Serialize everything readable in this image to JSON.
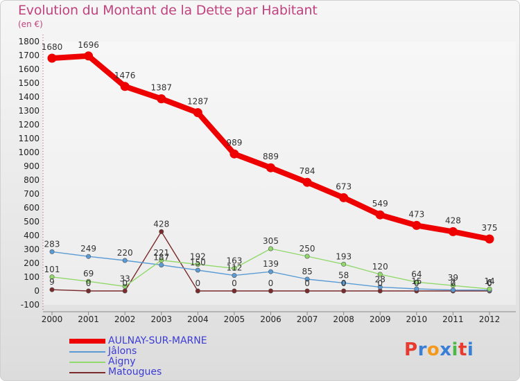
{
  "header": {
    "title": "Evolution du Montant de la Dette par Habitant",
    "subtitle": "(en €)"
  },
  "logo": {
    "text": "Proxiti",
    "colors": [
      "#e63b2e",
      "#3a7fd6",
      "#f39a1c",
      "#3a7fd6",
      "#4cb848",
      "#e63b2e",
      "#3a7fd6"
    ]
  },
  "chart_data": {
    "type": "line",
    "title": "Evolution du Montant de la Dette par Habitant",
    "subtitle": "(en €)",
    "xlabel": "",
    "ylabel": "",
    "x": [
      "2000",
      "2001",
      "2002",
      "2003",
      "2004",
      "2005",
      "2006",
      "2007",
      "2008",
      "2009",
      "2010",
      "2011",
      "2012"
    ],
    "ylim": [
      -100,
      1800
    ],
    "yticks": [
      -100,
      0,
      100,
      200,
      300,
      400,
      500,
      600,
      700,
      800,
      900,
      1000,
      1100,
      1200,
      1300,
      1400,
      1500,
      1600,
      1700,
      1800
    ],
    "legend_position": "bottom-left",
    "series": [
      {
        "name": "AULNAY-SUR-MARNE",
        "color": "#ee0000",
        "emphasis": "thick",
        "values": [
          1680,
          1696,
          1476,
          1387,
          1287,
          989,
          889,
          784,
          673,
          549,
          473,
          428,
          375
        ]
      },
      {
        "name": "Jâlons",
        "color": "#5a9bd5",
        "emphasis": "thin",
        "values": [
          283,
          249,
          220,
          187,
          150,
          112,
          139,
          85,
          58,
          28,
          15,
          7,
          6
        ]
      },
      {
        "name": "Aigny",
        "color": "#90d96a",
        "emphasis": "thin",
        "values": [
          101,
          69,
          33,
          221,
          192,
          163,
          305,
          250,
          193,
          120,
          64,
          39,
          14
        ]
      },
      {
        "name": "Matougues",
        "color": "#7a2a2a",
        "emphasis": "thin",
        "values": [
          9,
          0,
          0,
          428,
          0,
          0,
          0,
          0,
          0,
          0,
          0,
          0,
          0
        ]
      }
    ]
  }
}
